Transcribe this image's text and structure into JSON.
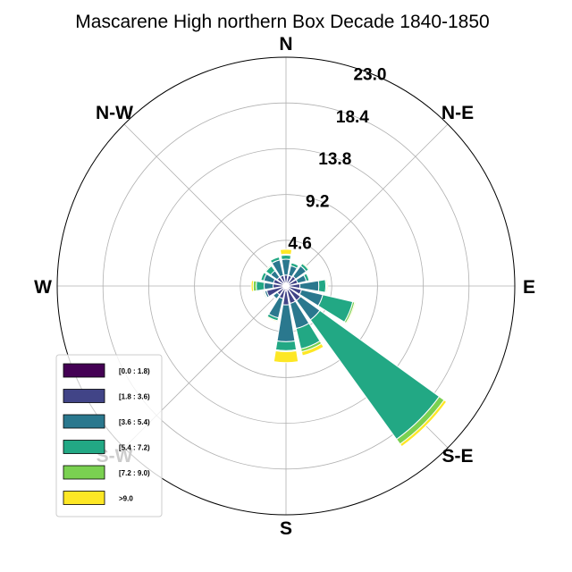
{
  "chart_data": {
    "type": "windrose",
    "title": "Mascarene High northern Box Decade 1840-1850",
    "directions": [
      "E",
      "N-E",
      "N",
      "N-W",
      "W",
      "S-W",
      "S",
      "S-E"
    ],
    "radial_ticks": [
      "4.6",
      "9.2",
      "13.8",
      "18.4",
      "23.0"
    ],
    "radial_tick_values": [
      4.6,
      9.2,
      13.8,
      18.4,
      23.0
    ],
    "rmax": 23.0,
    "legend": {
      "placement": "lower-left",
      "entries": [
        "[0.0 : 1.8)",
        "[1.8 : 3.6)",
        "[3.6 : 5.4)",
        "[5.4 : 7.2)",
        "[7.2 : 9.0)",
        ">9.0"
      ]
    },
    "colors": [
      "#440154",
      "#414487",
      "#2a788e",
      "#22a884",
      "#7ad151",
      "#fde725"
    ],
    "sector_compass_deg": [
      0,
      22.5,
      45,
      67.5,
      90,
      112.5,
      135,
      157.5,
      180,
      202.5,
      225,
      247.5,
      270,
      292.5,
      315,
      337.5
    ],
    "series": [
      {
        "name": "[0.0 : 1.8)",
        "values": [
          0.3,
          0.3,
          0.3,
          0.3,
          0.3,
          0.3,
          0.4,
          0.4,
          0.5,
          0.3,
          0.3,
          0.3,
          0.3,
          0.3,
          0.3,
          0.3
        ]
      },
      {
        "name": "[1.8 : 3.6)",
        "values": [
          0.8,
          0.8,
          0.9,
          0.9,
          1.1,
          1.3,
          1.4,
          1.4,
          1.4,
          1.0,
          0.8,
          1.7,
          1.0,
          1.0,
          0.8,
          0.8
        ]
      },
      {
        "name": "[3.6 : 5.4)",
        "values": [
          1.6,
          1.0,
          1.3,
          0.9,
          1.9,
          2.2,
          2.4,
          2.6,
          3.7,
          2.0,
          0.5,
          0.2,
          0.9,
          1.0,
          0.8,
          1.6
        ]
      },
      {
        "name": "[5.4 : 7.2)",
        "values": [
          0.4,
          0.3,
          0.3,
          0.3,
          0.7,
          3.1,
          14.8,
          2.1,
          0.9,
          0.3,
          0.1,
          0.1,
          0.8,
          0.3,
          0.6,
          0.3
        ]
      },
      {
        "name": "[7.2 : 9.0)",
        "values": [
          0.1,
          0.0,
          0.0,
          0.0,
          0.1,
          0.2,
          0.6,
          0.3,
          0.1,
          0.0,
          0.0,
          0.1,
          0.3,
          0.0,
          0.1,
          0.0
        ]
      },
      {
        "name": ">9.0",
        "values": [
          0.5,
          0.0,
          0.1,
          0.0,
          0.1,
          0.1,
          0.3,
          0.4,
          1.1,
          0.1,
          0.0,
          0.0,
          0.2,
          0.0,
          0.0,
          0.0
        ]
      }
    ]
  }
}
